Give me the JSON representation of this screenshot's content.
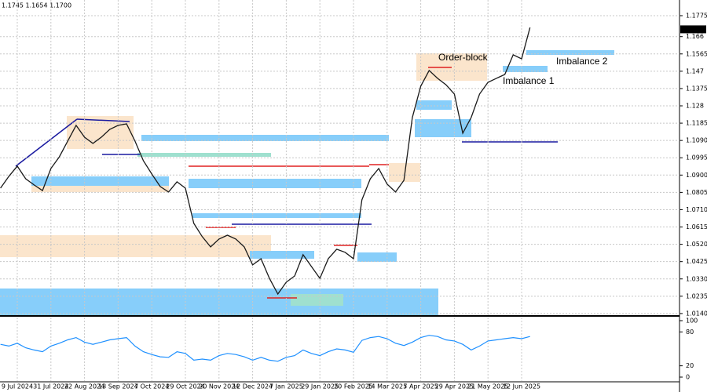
{
  "chart_data": [
    {
      "type": "line",
      "title": "1.1745 1.1654 1.1700",
      "color": "#1a1a1a",
      "grid": true,
      "categories": [
        null,
        null,
        "9 Jul 2024",
        null,
        null,
        null,
        "31 Jul 2024",
        null,
        null,
        null,
        "22 Aug 2024",
        null,
        null,
        null,
        "13 Sep 2024",
        null,
        null,
        null,
        "7 Oct 2024",
        null,
        null,
        null,
        "29 Oct 2024",
        null,
        null,
        null,
        "20 Nov 2024",
        null,
        null,
        null,
        "12 Dec 2024",
        null,
        null,
        null,
        "7 Jan 2025",
        null,
        null,
        null,
        "29 Jan 2025",
        null,
        null,
        null,
        "20 Feb 2025",
        null,
        null,
        null,
        "14 Mar 2025",
        null,
        null,
        null,
        "7 Apr 2025",
        null,
        null,
        null,
        "29 Apr 2025",
        null,
        null,
        null,
        "21 May 2025",
        null,
        null,
        null,
        "12 Jun 2025",
        null
      ],
      "values": [
        1.0828,
        1.0893,
        1.0949,
        1.088,
        1.0846,
        1.0815,
        1.0936,
        1.1,
        1.1087,
        1.1173,
        1.1108,
        1.1074,
        1.1108,
        1.1151,
        1.1173,
        1.1181,
        1.1087,
        1.0979,
        1.0906,
        1.0837,
        1.0807,
        1.0863,
        1.0828,
        1.0635,
        1.0562,
        1.0506,
        1.0549,
        1.057,
        1.0549,
        1.0506,
        1.0407,
        1.0441,
        1.0333,
        1.0247,
        1.0312,
        1.0346,
        1.0463,
        1.0398,
        1.0333,
        1.0441,
        1.0493,
        1.0476,
        1.0441,
        1.0764,
        1.088,
        1.0936,
        1.085,
        1.0807,
        1.0871,
        1.1216,
        1.1388,
        1.1474,
        1.1431,
        1.1396,
        1.1345,
        1.113,
        1.1216,
        1.1345,
        1.1409,
        1.1431,
        1.1452,
        1.156,
        1.1538,
        1.171
      ],
      "ylim": [
        1.0131,
        1.1861
      ],
      "yticks": [
        1.1775,
        1.166,
        1.1565,
        1.147,
        1.1375,
        1.128,
        1.1185,
        {
          "value": 1.109,
          "label": "1.1090"
        },
        1.0995,
        {
          "value": 1.09,
          "label": "1.0900"
        },
        1.0805,
        {
          "value": 1.071,
          "label": "1.0710"
        },
        1.0615,
        {
          "value": 1.052,
          "label": "1.0520"
        },
        1.0425,
        {
          "value": 1.033,
          "label": "1.0330"
        },
        1.0235,
        {
          "value": 1.014,
          "label": "1.0140"
        }
      ],
      "last_price": {
        "value": 1.17,
        "label": "1.1700"
      },
      "annotations": [
        {
          "text": "Order-block"
        },
        {
          "text": "Imbalance 1"
        },
        {
          "text": "Imbalance 2"
        }
      ]
    },
    {
      "type": "line",
      "color": "#1e90ff",
      "values": [
        58,
        55,
        60,
        52,
        48,
        45,
        55,
        60,
        66,
        70,
        62,
        58,
        62,
        66,
        68,
        70,
        55,
        45,
        40,
        36,
        35,
        45,
        42,
        30,
        32,
        30,
        38,
        42,
        40,
        36,
        30,
        35,
        30,
        28,
        35,
        38,
        48,
        42,
        38,
        45,
        50,
        48,
        44,
        65,
        70,
        72,
        68,
        60,
        56,
        62,
        70,
        74,
        72,
        66,
        64,
        58,
        48,
        55,
        64,
        66,
        68,
        70,
        68,
        72
      ],
      "ylim": [
        0,
        100
      ],
      "yticks": [
        100,
        80,
        20,
        0
      ]
    }
  ]
}
